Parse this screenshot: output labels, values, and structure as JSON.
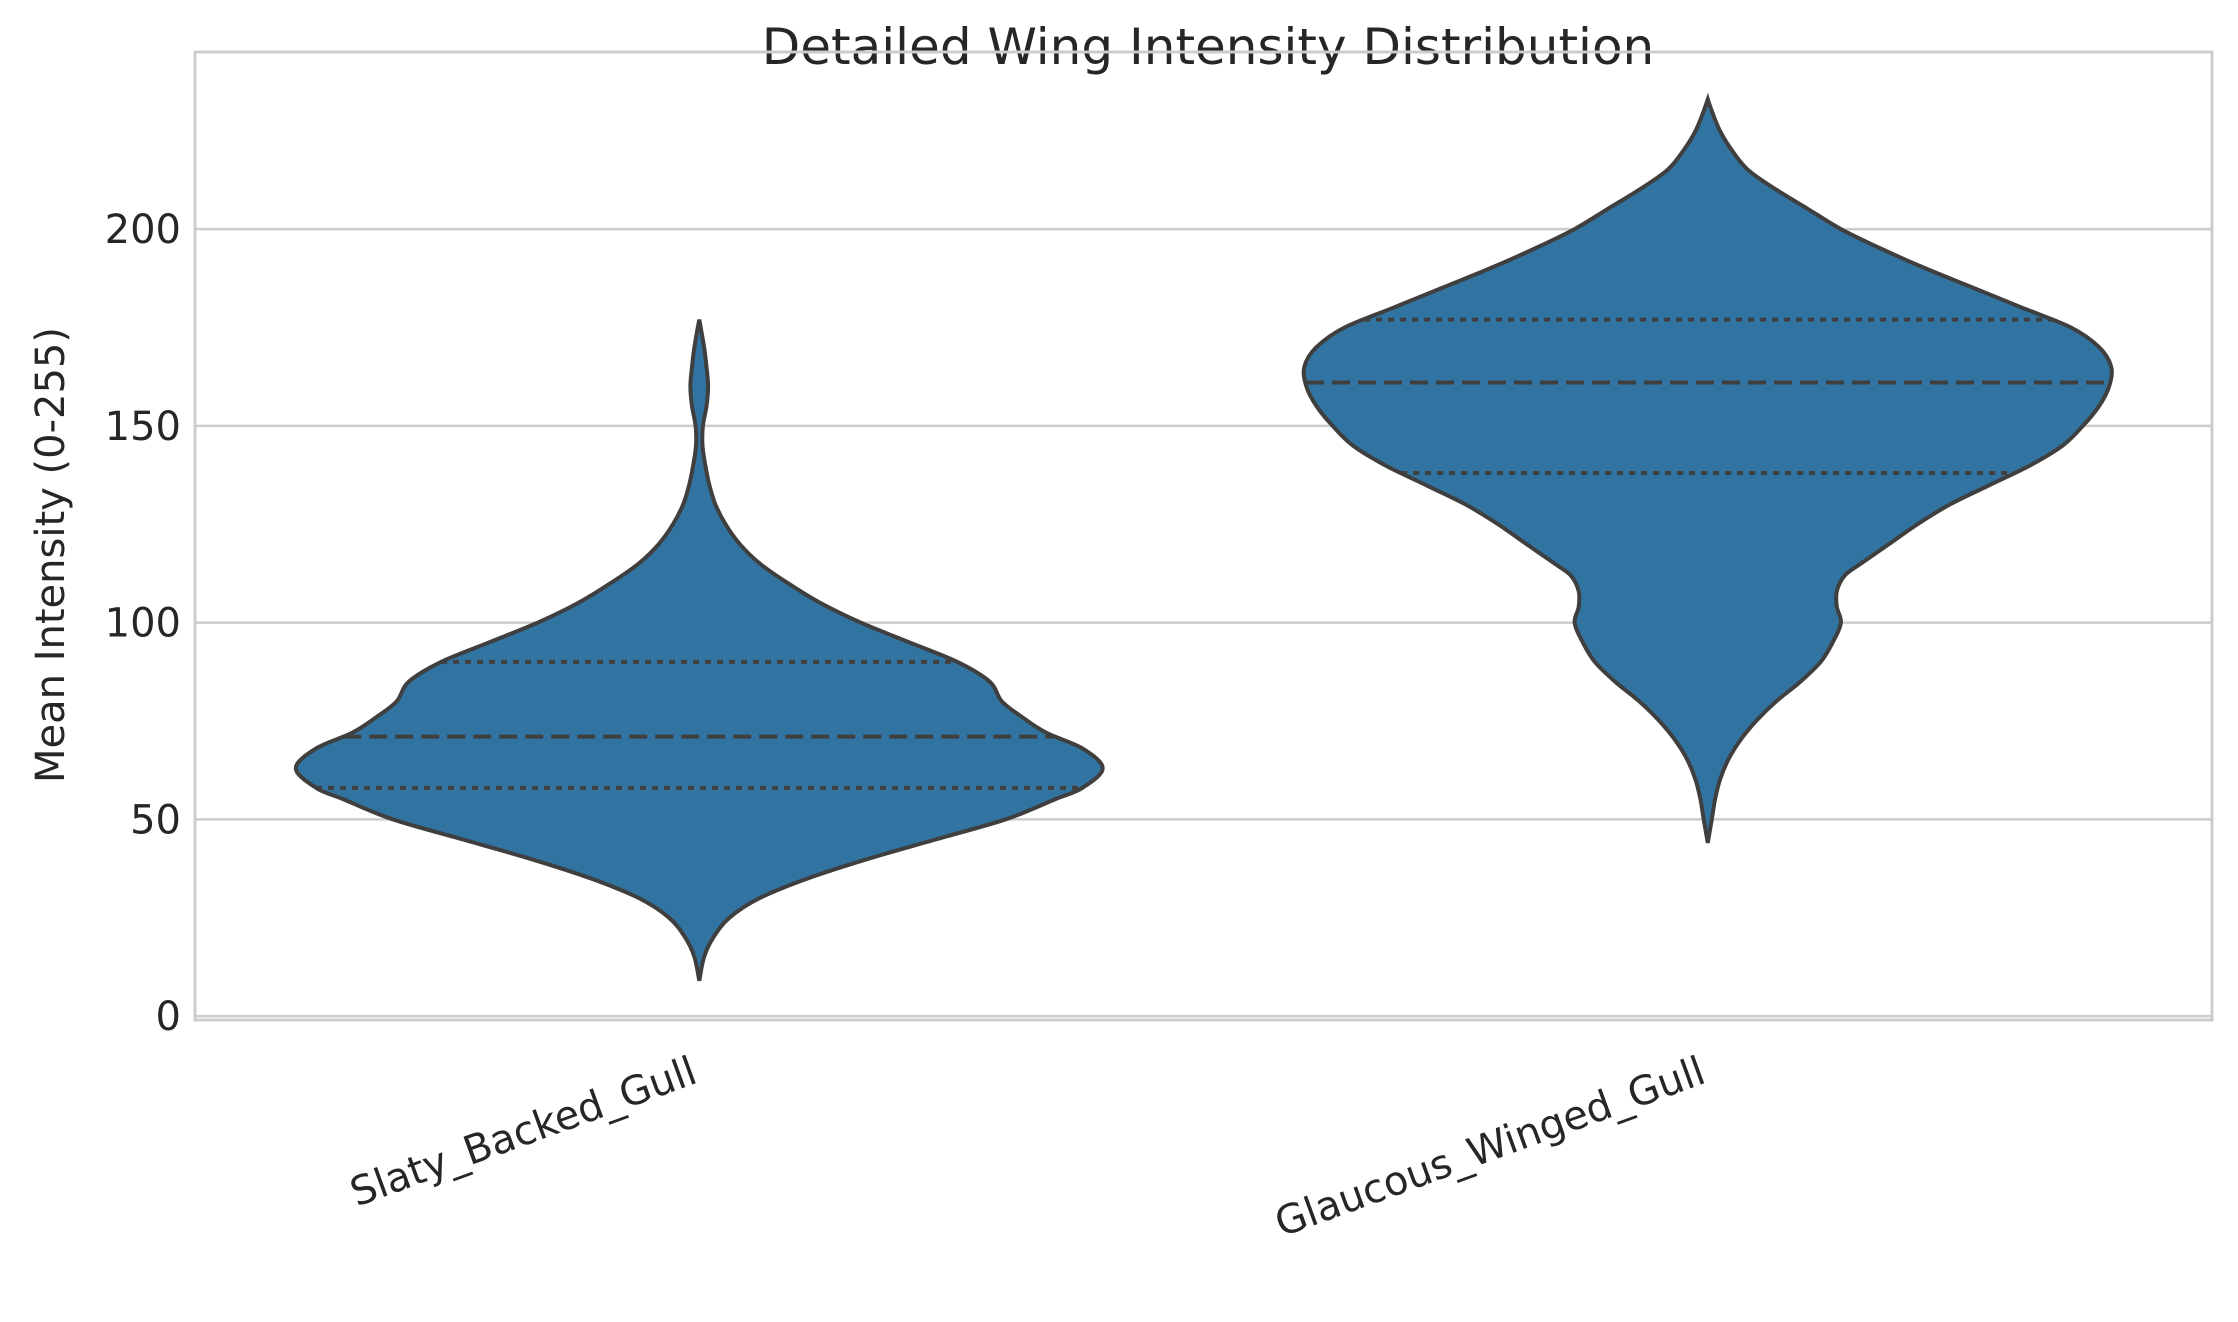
{
  "chart_data": {
    "type": "violin",
    "title": "Detailed Wing Intensity Distribution",
    "xlabel": "",
    "ylabel": "Mean Intensity (0-255)",
    "ylim": [
      -1,
      245
    ],
    "yticks": [
      0,
      50,
      100,
      150,
      200
    ],
    "grid": true,
    "fill_color": "#3274a1",
    "edge_color": "#3f3f3f",
    "categories": [
      "Slaty_Backed_Gull",
      "Glaucous_Winged_Gull"
    ],
    "series": [
      {
        "category": "Slaty_Backed_Gull",
        "min": 9,
        "max": 177,
        "q1": 58,
        "median": 71,
        "q3": 90,
        "density_profile": [
          [
            9,
            0.0
          ],
          [
            15,
            0.012
          ],
          [
            20,
            0.035
          ],
          [
            25,
            0.075
          ],
          [
            30,
            0.15
          ],
          [
            35,
            0.27
          ],
          [
            40,
            0.42
          ],
          [
            45,
            0.59
          ],
          [
            50,
            0.76
          ],
          [
            55,
            0.88
          ],
          [
            58,
            0.95
          ],
          [
            63,
            1.0
          ],
          [
            68,
            0.95
          ],
          [
            72,
            0.86
          ],
          [
            76,
            0.8
          ],
          [
            80,
            0.75
          ],
          [
            85,
            0.72
          ],
          [
            90,
            0.64
          ],
          [
            95,
            0.52
          ],
          [
            100,
            0.4
          ],
          [
            105,
            0.3
          ],
          [
            110,
            0.22
          ],
          [
            115,
            0.15
          ],
          [
            120,
            0.1
          ],
          [
            125,
            0.065
          ],
          [
            130,
            0.04
          ],
          [
            135,
            0.025
          ],
          [
            140,
            0.015
          ],
          [
            145,
            0.008
          ],
          [
            150,
            0.009
          ],
          [
            155,
            0.018
          ],
          [
            160,
            0.022
          ],
          [
            165,
            0.018
          ],
          [
            170,
            0.012
          ],
          [
            177,
            0.0
          ]
        ]
      },
      {
        "category": "Glaucous_Winged_Gull",
        "min": 44,
        "max": 233,
        "q1": 138,
        "median": 161,
        "q3": 177,
        "density_profile": [
          [
            44,
            0.0
          ],
          [
            50,
            0.01
          ],
          [
            55,
            0.018
          ],
          [
            60,
            0.03
          ],
          [
            65,
            0.05
          ],
          [
            70,
            0.08
          ],
          [
            75,
            0.12
          ],
          [
            80,
            0.17
          ],
          [
            85,
            0.23
          ],
          [
            90,
            0.28
          ],
          [
            95,
            0.31
          ],
          [
            100,
            0.33
          ],
          [
            104,
            0.32
          ],
          [
            108,
            0.32
          ],
          [
            112,
            0.34
          ],
          [
            115,
            0.38
          ],
          [
            120,
            0.45
          ],
          [
            125,
            0.52
          ],
          [
            130,
            0.6
          ],
          [
            135,
            0.7
          ],
          [
            140,
            0.8
          ],
          [
            145,
            0.88
          ],
          [
            150,
            0.93
          ],
          [
            155,
            0.97
          ],
          [
            160,
            0.995
          ],
          [
            165,
            1.0
          ],
          [
            170,
            0.97
          ],
          [
            175,
            0.9
          ],
          [
            180,
            0.78
          ],
          [
            185,
            0.66
          ],
          [
            190,
            0.54
          ],
          [
            195,
            0.43
          ],
          [
            200,
            0.33
          ],
          [
            205,
            0.25
          ],
          [
            210,
            0.17
          ],
          [
            215,
            0.1
          ],
          [
            220,
            0.06
          ],
          [
            225,
            0.03
          ],
          [
            230,
            0.01
          ],
          [
            233,
            0.0
          ]
        ]
      }
    ]
  }
}
